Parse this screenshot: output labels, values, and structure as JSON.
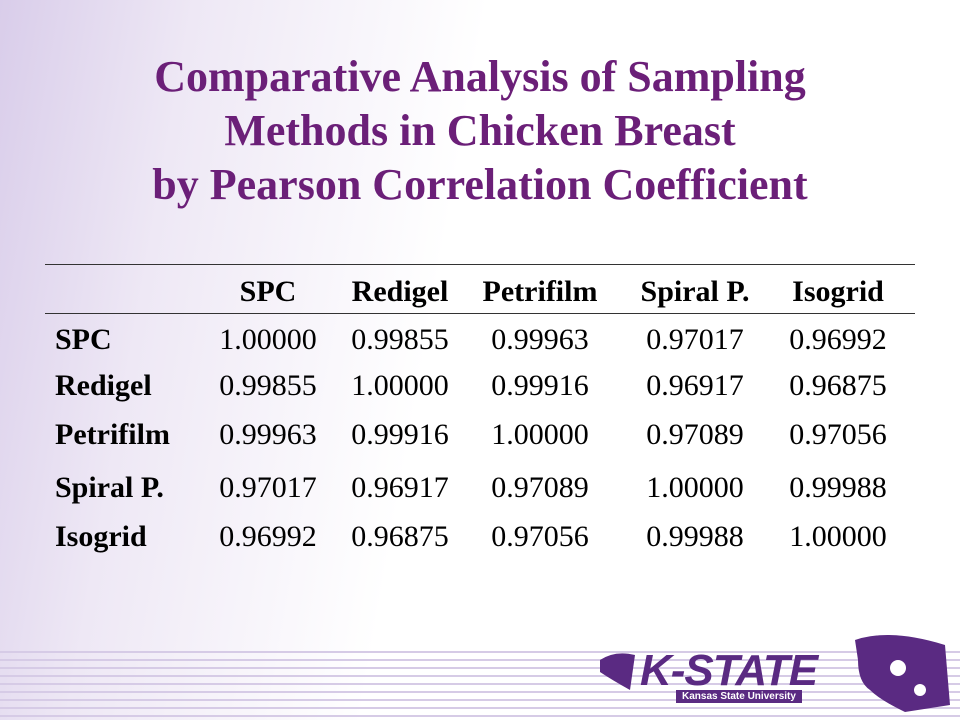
{
  "title": {
    "lines": [
      "Comparative Analysis of Sampling",
      "Methods in Chicken Breast",
      "by Pearson Correlation Coefficient"
    ]
  },
  "table": {
    "columns": [
      "SPC",
      "Redigel",
      "Petrifilm",
      "Spiral P.",
      "Isogrid"
    ],
    "rows": [
      {
        "label": "SPC",
        "cells": [
          "1.00000",
          "0.99855",
          "0.99963",
          "0.97017",
          "0.96992"
        ]
      },
      {
        "label": "Redigel",
        "cells": [
          "0.99855",
          "1.00000",
          "0.99916",
          "0.96917",
          "0.96875"
        ]
      },
      {
        "label": "Petrifilm",
        "cells": [
          "0.99963",
          "0.99916",
          "1.00000",
          "0.97089",
          "0.97056"
        ]
      },
      {
        "label": "Spiral P.",
        "cells": [
          "0.97017",
          "0.96917",
          "0.97089",
          "1.00000",
          "0.99988"
        ]
      },
      {
        "label": "Isogrid",
        "cells": [
          "0.96992",
          "0.96875",
          "0.97056",
          "0.99988",
          "1.00000"
        ]
      }
    ]
  },
  "logo": {
    "wordmark": "K-STATE",
    "tagline": "Kansas State University"
  }
}
